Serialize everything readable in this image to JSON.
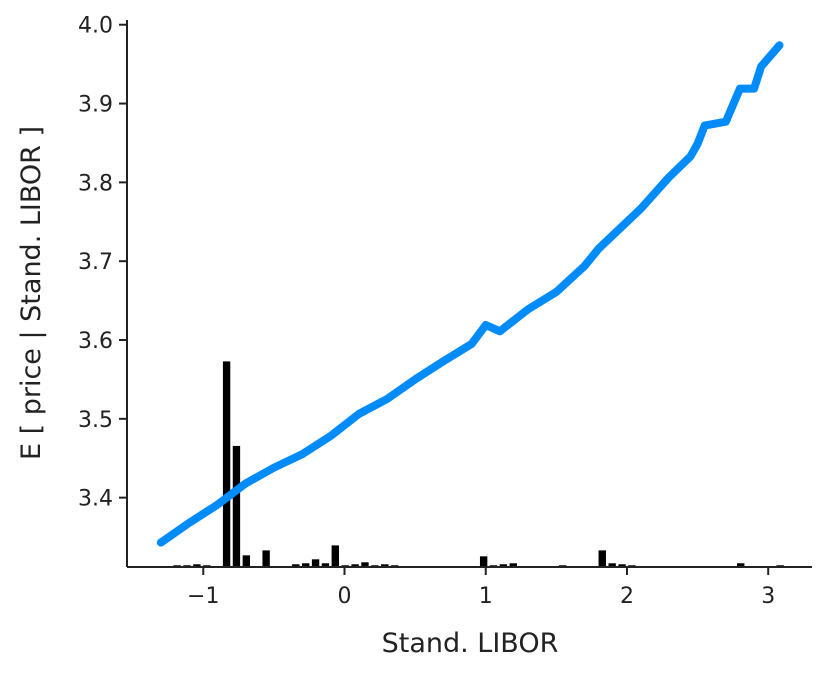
{
  "chart_data": {
    "type": "line",
    "x_label": "Stand. LIBOR",
    "y_label": "E [ price | Stand. LIBOR ]",
    "xlim": [
      -1.54,
      3.31
    ],
    "ylim": [
      3.312,
      4.006
    ],
    "xticks": [
      {
        "value": -1,
        "label": "−1"
      },
      0,
      1,
      2,
      3
    ],
    "yticks": [
      3.4,
      3.5,
      3.6,
      3.7,
      3.8,
      3.9,
      {
        "value": 4,
        "label": "4.0"
      }
    ],
    "x": [
      -1.3,
      -1.1,
      -0.9,
      -0.7,
      -0.5,
      -0.3,
      -0.1,
      0.1,
      0.3,
      0.5,
      0.7,
      0.9,
      1.0,
      1.1,
      1.3,
      1.5,
      1.7,
      1.8,
      1.9,
      2.1,
      2.3,
      2.45,
      2.5,
      2.55,
      2.7,
      2.8,
      2.9,
      2.95,
      3.08
    ],
    "series": [
      {
        "color": "#008bfb",
        "values": [
          3.343,
          3.368,
          3.391,
          3.418,
          3.438,
          3.455,
          3.478,
          3.506,
          3.525,
          3.55,
          3.573,
          3.595,
          3.619,
          3.611,
          3.639,
          3.661,
          3.694,
          3.716,
          3.733,
          3.767,
          3.807,
          3.833,
          3.849,
          3.872,
          3.877,
          3.919,
          3.919,
          3.947,
          3.974
        ]
      }
    ],
    "histogram": {
      "color": "#000000",
      "y2lim": [
        0,
        550
      ],
      "bins": [
        -1.36,
        -1.29,
        -1.22,
        -1.15,
        -1.08,
        -1.01,
        -0.94,
        -0.87,
        -0.8,
        -0.73,
        -0.66,
        -0.59,
        -0.52,
        -0.45,
        -0.38,
        -0.31,
        -0.24,
        -0.17,
        -0.1,
        -0.03,
        0.04,
        0.11,
        0.18,
        0.25,
        0.32,
        0.39,
        0.46,
        0.53,
        0.6,
        0.67,
        0.74,
        0.81,
        0.88,
        0.95,
        1.02,
        1.09,
        1.16,
        1.23,
        1.3,
        1.37,
        1.44,
        1.51,
        1.58,
        1.65,
        1.72,
        1.79,
        1.86,
        1.93,
        2.0,
        2.07,
        2.14,
        2.21,
        2.28,
        2.35,
        2.42,
        2.49,
        2.56,
        2.63,
        2.7,
        2.77,
        2.84,
        2.91,
        2.98,
        3.05,
        3.12
      ],
      "counts": [
        1,
        1,
        2,
        2,
        3,
        2,
        0,
        207,
        122,
        12,
        0,
        17,
        1,
        0,
        3,
        4,
        8,
        4,
        22,
        2,
        3,
        5,
        2,
        3,
        2,
        1,
        1,
        1,
        1,
        0,
        0,
        1,
        1,
        11,
        2,
        3,
        4,
        1,
        1,
        1,
        1,
        2,
        0,
        0,
        0,
        17,
        4,
        3,
        2,
        1,
        1,
        1,
        1,
        0,
        0,
        0,
        1,
        1,
        1,
        4,
        1,
        1,
        1,
        2
      ]
    }
  }
}
